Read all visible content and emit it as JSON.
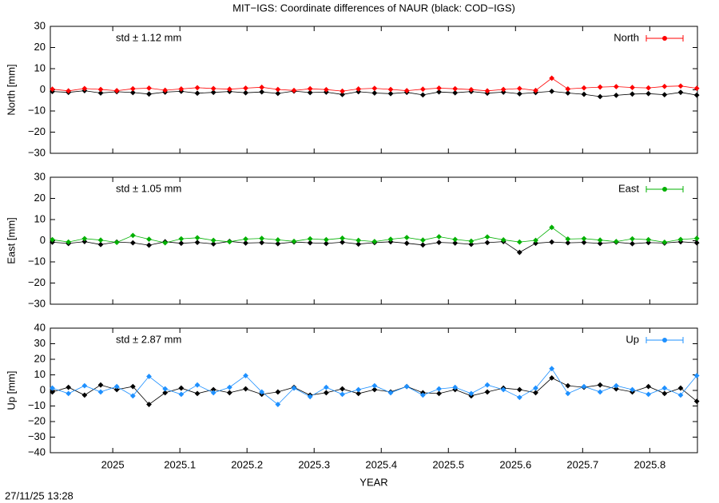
{
  "title": "MIT−IGS: Coordinate differences of NAUR (black: COD−IGS)",
  "timestamp": "27/11/25 13:28",
  "chart_data": [
    {
      "type": "line",
      "ylabel": "North [mm]",
      "annotation": "std ± 1.12 mm",
      "legend": "upper right",
      "xlim": [
        2024.907,
        2025.871
      ],
      "ylim": [
        -30,
        30
      ],
      "yticks": [
        {
          "value": -30,
          "label": "−30"
        },
        {
          "value": -20,
          "label": "−20"
        },
        {
          "value": -10,
          "label": "−10"
        },
        0,
        10,
        20,
        30
      ],
      "x": [
        2024.91,
        2024.934,
        2024.958,
        2024.982,
        2025.006,
        2025.03,
        2025.054,
        2025.078,
        2025.102,
        2025.126,
        2025.15,
        2025.174,
        2025.198,
        2025.222,
        2025.246,
        2025.27,
        2025.294,
        2025.318,
        2025.342,
        2025.366,
        2025.39,
        2025.414,
        2025.438,
        2025.462,
        2025.486,
        2025.51,
        2025.534,
        2025.558,
        2025.582,
        2025.606,
        2025.63,
        2025.654,
        2025.678,
        2025.702,
        2025.726,
        2025.75,
        2025.774,
        2025.798,
        2025.822,
        2025.846,
        2025.87
      ],
      "series": [
        {
          "color": "#000000",
          "values": [
            -0.8,
            -1.2,
            -0.4,
            -1.5,
            -0.9,
            -1.3,
            -2.0,
            -1.1,
            -0.7,
            -1.6,
            -1.2,
            -0.8,
            -1.4,
            -1.0,
            -1.7,
            -0.6,
            -1.3,
            -1.1,
            -2.2,
            -0.9,
            -1.5,
            -1.8,
            -1.2,
            -2.4,
            -1.0,
            -1.4,
            -0.8,
            -1.6,
            -1.1,
            -1.9,
            -1.3,
            -0.7,
            -1.5,
            -2.1,
            -3.2,
            -2.6,
            -2.0,
            -1.8,
            -2.3,
            -1.2,
            -2.5
          ]
        },
        {
          "name": "North",
          "color": "#ff0000",
          "values": [
            0.3,
            -0.5,
            0.6,
            0.2,
            -0.4,
            0.5,
            0.8,
            -0.2,
            0.4,
            1.0,
            0.6,
            0.3,
            0.8,
            1.2,
            0.2,
            -0.3,
            0.5,
            0.1,
            -0.6,
            0.4,
            0.7,
            0.2,
            -0.4,
            0.3,
            0.8,
            0.5,
            0.1,
            -0.5,
            0.2,
            0.6,
            -0.3,
            5.5,
            0.4,
            0.9,
            1.3,
            1.5,
            1.1,
            0.9,
            1.6,
            1.8,
            0.7
          ]
        }
      ]
    },
    {
      "type": "line",
      "ylabel": "East [mm]",
      "annotation": "std ± 1.05 mm",
      "legend": "upper right",
      "xlim": [
        2024.907,
        2025.871
      ],
      "ylim": [
        -30,
        30
      ],
      "yticks": [
        {
          "value": -30,
          "label": "−30"
        },
        {
          "value": -20,
          "label": "−20"
        },
        {
          "value": -10,
          "label": "−10"
        },
        0,
        10,
        20,
        30
      ],
      "x": [
        2024.91,
        2024.934,
        2024.958,
        2024.982,
        2025.006,
        2025.03,
        2025.054,
        2025.078,
        2025.102,
        2025.126,
        2025.15,
        2025.174,
        2025.198,
        2025.222,
        2025.246,
        2025.27,
        2025.294,
        2025.318,
        2025.342,
        2025.366,
        2025.39,
        2025.414,
        2025.438,
        2025.462,
        2025.486,
        2025.51,
        2025.534,
        2025.558,
        2025.582,
        2025.606,
        2025.63,
        2025.654,
        2025.678,
        2025.702,
        2025.726,
        2025.75,
        2025.774,
        2025.798,
        2025.822,
        2025.846,
        2025.87
      ],
      "series": [
        {
          "color": "#000000",
          "values": [
            -0.7,
            -1.3,
            -0.4,
            -1.8,
            -0.6,
            -1.0,
            -2.1,
            -0.5,
            -1.2,
            -0.8,
            -1.5,
            -0.3,
            -1.1,
            -0.9,
            -1.4,
            -0.6,
            -1.0,
            -1.3,
            -0.7,
            -1.6,
            -0.9,
            -0.5,
            -1.2,
            -2.0,
            -0.8,
            -1.1,
            -1.7,
            -0.9,
            -0.4,
            -5.5,
            -1.2,
            -0.6,
            -1.0,
            -0.8,
            -1.3,
            -0.7,
            -1.4,
            -0.9,
            -1.1,
            -0.5,
            -1.0
          ]
        },
        {
          "name": "East",
          "color": "#00b000",
          "values": [
            0.5,
            -0.6,
            1.0,
            0.3,
            -0.8,
            2.5,
            0.7,
            -1.0,
            0.9,
            1.4,
            0.2,
            -0.5,
            0.8,
            1.1,
            0.4,
            -0.3,
            0.9,
            0.5,
            1.2,
            0.2,
            -0.4,
            0.7,
            1.5,
            0.3,
            1.9,
            0.6,
            -0.2,
            1.8,
            0.4,
            -0.6,
            0.2,
            6.3,
            0.8,
            1.0,
            0.3,
            -0.4,
            0.9,
            0.5,
            -0.7,
            0.6,
            1.1
          ]
        }
      ]
    },
    {
      "type": "line",
      "ylabel": "Up [mm]",
      "xlabel": "YEAR",
      "annotation": "std ± 2.87 mm",
      "legend": "upper right",
      "xlim": [
        2024.907,
        2025.871
      ],
      "ylim": [
        -40,
        40
      ],
      "xticks": [
        2025,
        2025.1,
        2025.2,
        2025.3,
        2025.4,
        2025.5,
        2025.6,
        2025.7,
        2025.8
      ],
      "yticks": [
        {
          "value": -40,
          "label": "−40"
        },
        {
          "value": -30,
          "label": "−30"
        },
        {
          "value": -20,
          "label": "−20"
        },
        {
          "value": -10,
          "label": "−10"
        },
        0,
        10,
        20,
        30,
        40
      ],
      "x": [
        2024.91,
        2024.934,
        2024.958,
        2024.982,
        2025.006,
        2025.03,
        2025.054,
        2025.078,
        2025.102,
        2025.126,
        2025.15,
        2025.174,
        2025.198,
        2025.222,
        2025.246,
        2025.27,
        2025.294,
        2025.318,
        2025.342,
        2025.366,
        2025.39,
        2025.414,
        2025.438,
        2025.462,
        2025.486,
        2025.51,
        2025.534,
        2025.558,
        2025.582,
        2025.606,
        2025.63,
        2025.654,
        2025.678,
        2025.702,
        2025.726,
        2025.75,
        2025.774,
        2025.798,
        2025.822,
        2025.846,
        2025.87
      ],
      "series": [
        {
          "color": "#000000",
          "values": [
            -1.0,
            2.0,
            -3.0,
            3.5,
            0.5,
            2.5,
            -9.0,
            -1.5,
            1.5,
            -2.0,
            0.5,
            -1.5,
            1.0,
            -2.5,
            -1.0,
            2.0,
            -3.0,
            -1.5,
            1.0,
            -2.0,
            0.5,
            -1.0,
            2.5,
            -1.5,
            -2.0,
            0.5,
            -3.5,
            -1.0,
            1.5,
            0.5,
            -1.5,
            8.0,
            3.0,
            2.0,
            3.5,
            1.0,
            -1.0,
            2.5,
            -2.0,
            1.5,
            -7.0
          ]
        },
        {
          "name": "Up",
          "color": "#1e90ff",
          "values": [
            1.5,
            -2.0,
            3.0,
            -1.0,
            2.5,
            -3.5,
            9.0,
            1.0,
            -2.5,
            3.5,
            -1.5,
            2.0,
            9.5,
            -1.0,
            -9.0,
            1.5,
            -4.0,
            2.0,
            -2.5,
            0.5,
            3.0,
            -1.5,
            2.5,
            -3.0,
            1.0,
            2.0,
            -2.0,
            3.5,
            0.5,
            -4.5,
            1.5,
            14.0,
            -2.0,
            2.5,
            -1.0,
            3.0,
            0.5,
            -2.5,
            1.5,
            -3.0,
            9.5
          ]
        }
      ]
    }
  ]
}
